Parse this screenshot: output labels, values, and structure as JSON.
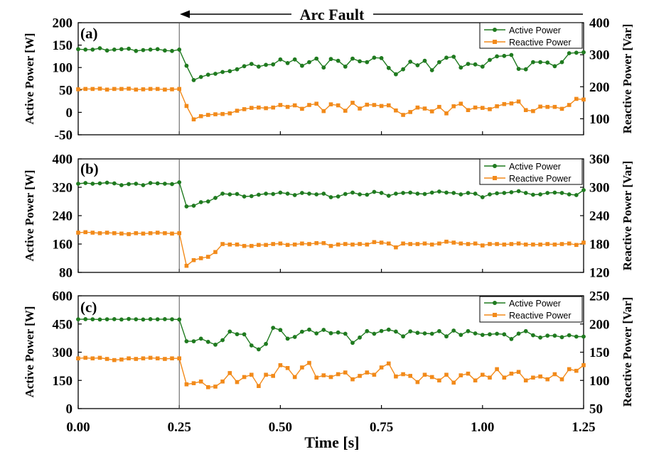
{
  "figure": {
    "annotation": "Arc Fault",
    "xlabel": "Time [s]",
    "x_ticks": [
      "0.00",
      "0.25",
      "0.50",
      "0.75",
      "1.00",
      "1.25"
    ],
    "x_range": [
      0,
      1.25
    ],
    "fault_time": 0.25,
    "colors": {
      "active": "#1f7a1f",
      "reactive": "#f28a1a",
      "axis": "#000000"
    }
  },
  "chart_data": [
    {
      "type": "line",
      "panel_label": "(a)",
      "ylabel_left": "Active Power [W]",
      "ylabel_right": "Reactive Power [Var]",
      "ylim_left": [
        -50,
        200
      ],
      "ylim_right": [
        50,
        400
      ],
      "yticks_left": [
        "-50",
        "0",
        "50",
        "100",
        "150",
        "200"
      ],
      "yticks_right": [
        "100",
        "200",
        "300",
        "400"
      ],
      "legend": [
        "Active Power",
        "Reactive Power"
      ],
      "legend_position": "top-right",
      "x": [
        0.0,
        0.0179,
        0.0357,
        0.0536,
        0.0714,
        0.0893,
        0.1071,
        0.125,
        0.1429,
        0.1607,
        0.1786,
        0.1964,
        0.2143,
        0.2321,
        0.25,
        0.2679,
        0.2857,
        0.3036,
        0.3214,
        0.3393,
        0.3571,
        0.375,
        0.3929,
        0.4107,
        0.4286,
        0.4464,
        0.4643,
        0.4821,
        0.5,
        0.5179,
        0.5357,
        0.5536,
        0.5714,
        0.5893,
        0.6071,
        0.625,
        0.6429,
        0.6607,
        0.6786,
        0.6964,
        0.7143,
        0.7321,
        0.75,
        0.7679,
        0.7857,
        0.8036,
        0.8214,
        0.8393,
        0.8571,
        0.875,
        0.8929,
        0.9107,
        0.9286,
        0.9464,
        0.9643,
        0.9821,
        1.0,
        1.0179,
        1.0357,
        1.0536,
        1.0714,
        1.0893,
        1.1071,
        1.125,
        1.1429,
        1.1607,
        1.1786,
        1.1964,
        1.2143,
        1.2321,
        1.25
      ],
      "series": [
        {
          "name": "Active Power",
          "axis": "left",
          "values": [
            141,
            140,
            140,
            143,
            138,
            140,
            141,
            142,
            137,
            139,
            140,
            141,
            138,
            137,
            140,
            104,
            72,
            79,
            84,
            86,
            90,
            92,
            96,
            103,
            108,
            102,
            106,
            107,
            118,
            110,
            118,
            104,
            112,
            120,
            100,
            119,
            115,
            102,
            120,
            114,
            112,
            122,
            121,
            99,
            85,
            96,
            113,
            105,
            115,
            94,
            112,
            122,
            124,
            100,
            108,
            107,
            102,
            117,
            125,
            126,
            128,
            97,
            96,
            112,
            112,
            111,
            103,
            112,
            132,
            133,
            134
          ]
        },
        {
          "name": "Reactive Power",
          "axis": "right",
          "values": [
            192,
            193,
            193,
            194,
            191,
            193,
            193,
            194,
            191,
            192,
            193,
            193,
            191,
            192,
            193,
            140,
            98,
            108,
            112,
            114,
            115,
            117,
            125,
            130,
            134,
            135,
            133,
            135,
            143,
            137,
            142,
            131,
            143,
            147,
            124,
            145,
            142,
            125,
            150,
            132,
            144,
            143,
            140,
            142,
            126,
            112,
            121,
            135,
            132,
            123,
            137,
            117,
            139,
            147,
            127,
            135,
            134,
            130,
            139,
            146,
            148,
            154,
            127,
            124,
            138,
            137,
            137,
            131,
            143,
            162,
            160
          ]
        }
      ]
    },
    {
      "type": "line",
      "panel_label": "(b)",
      "ylabel_left": "Active Power [W]",
      "ylabel_right": "Reactive Power [Var]",
      "ylim_left": [
        80,
        400
      ],
      "ylim_right": [
        120,
        360
      ],
      "yticks_left": [
        "80",
        "160",
        "240",
        "320",
        "400"
      ],
      "yticks_right": [
        "120",
        "180",
        "240",
        "300",
        "360"
      ],
      "legend": [
        "Active Power",
        "Reactive Power"
      ],
      "legend_position": "top-right",
      "x": [
        0.0,
        0.0179,
        0.0357,
        0.0536,
        0.0714,
        0.0893,
        0.1071,
        0.125,
        0.1429,
        0.1607,
        0.1786,
        0.1964,
        0.2143,
        0.2321,
        0.25,
        0.2679,
        0.2857,
        0.3036,
        0.3214,
        0.3393,
        0.3571,
        0.375,
        0.3929,
        0.4107,
        0.4286,
        0.4464,
        0.4643,
        0.4821,
        0.5,
        0.5179,
        0.5357,
        0.5536,
        0.5714,
        0.5893,
        0.6071,
        0.625,
        0.6429,
        0.6607,
        0.6786,
        0.6964,
        0.7143,
        0.7321,
        0.75,
        0.7679,
        0.7857,
        0.8036,
        0.8214,
        0.8393,
        0.8571,
        0.875,
        0.8929,
        0.9107,
        0.9286,
        0.9464,
        0.9643,
        0.9821,
        1.0,
        1.0179,
        1.0357,
        1.0536,
        1.0714,
        1.0893,
        1.1071,
        1.125,
        1.1429,
        1.1607,
        1.1786,
        1.1964,
        1.2143,
        1.2321,
        1.25
      ],
      "series": [
        {
          "name": "Active Power",
          "axis": "left",
          "values": [
            330,
            332,
            330,
            331,
            333,
            331,
            326,
            329,
            330,
            326,
            332,
            331,
            330,
            329,
            334,
            266,
            268,
            278,
            280,
            290,
            302,
            300,
            301,
            294,
            295,
            299,
            302,
            301,
            305,
            302,
            298,
            304,
            302,
            300,
            302,
            292,
            294,
            301,
            305,
            300,
            299,
            307,
            304,
            296,
            302,
            304,
            305,
            302,
            301,
            305,
            308,
            305,
            304,
            300,
            304,
            302,
            292,
            300,
            303,
            304,
            306,
            309,
            304,
            299,
            300,
            304,
            305,
            304,
            300,
            298,
            312
          ]
        },
        {
          "name": "Reactive Power",
          "axis": "right",
          "values": [
            204,
            205,
            204,
            203,
            204,
            203,
            202,
            201,
            203,
            202,
            203,
            204,
            203,
            202,
            203,
            134,
            146,
            150,
            153,
            163,
            180,
            179,
            179,
            176,
            176,
            178,
            178,
            180,
            181,
            178,
            179,
            181,
            180,
            182,
            182,
            176,
            179,
            180,
            179,
            180,
            179,
            184,
            183,
            181,
            173,
            181,
            180,
            180,
            181,
            179,
            181,
            185,
            183,
            181,
            180,
            181,
            177,
            180,
            180,
            179,
            180,
            181,
            179,
            179,
            179,
            180,
            179,
            180,
            181,
            178,
            183
          ]
        }
      ]
    },
    {
      "type": "line",
      "panel_label": "(c)",
      "ylabel_left": "Active Power [W]",
      "ylabel_right": "Reactive Power [Var]",
      "ylim_left": [
        0,
        600
      ],
      "ylim_right": [
        50,
        250
      ],
      "yticks_left": [
        "0",
        "150",
        "300",
        "450",
        "600"
      ],
      "yticks_right": [
        "50",
        "100",
        "150",
        "200",
        "250"
      ],
      "legend": [
        "Active Power",
        "Reactive Power"
      ],
      "legend_position": "top-right",
      "x": [
        0.0,
        0.0179,
        0.0357,
        0.0536,
        0.0714,
        0.0893,
        0.1071,
        0.125,
        0.1429,
        0.1607,
        0.1786,
        0.1964,
        0.2143,
        0.2321,
        0.25,
        0.2679,
        0.2857,
        0.3036,
        0.3214,
        0.3393,
        0.3571,
        0.375,
        0.3929,
        0.4107,
        0.4286,
        0.4464,
        0.4643,
        0.4821,
        0.5,
        0.5179,
        0.5357,
        0.5536,
        0.5714,
        0.5893,
        0.6071,
        0.625,
        0.6429,
        0.6607,
        0.6786,
        0.6964,
        0.7143,
        0.7321,
        0.75,
        0.7679,
        0.7857,
        0.8036,
        0.8214,
        0.8393,
        0.8571,
        0.875,
        0.8929,
        0.9107,
        0.9286,
        0.9464,
        0.9643,
        0.9821,
        1.0,
        1.0179,
        1.0357,
        1.0536,
        1.0714,
        1.0893,
        1.1071,
        1.125,
        1.1429,
        1.1607,
        1.1786,
        1.1964,
        1.2143,
        1.2321,
        1.25
      ],
      "series": [
        {
          "name": "Active Power",
          "axis": "left",
          "values": [
            475,
            476,
            475,
            474,
            475,
            476,
            474,
            477,
            475,
            474,
            476,
            475,
            476,
            475,
            474,
            358,
            358,
            372,
            355,
            340,
            364,
            410,
            396,
            395,
            336,
            315,
            344,
            430,
            418,
            372,
            381,
            409,
            420,
            400,
            419,
            401,
            405,
            398,
            350,
            378,
            412,
            398,
            413,
            420,
            410,
            384,
            411,
            403,
            400,
            398,
            412,
            384,
            415,
            392,
            412,
            400,
            392,
            395,
            398,
            395,
            370,
            399,
            412,
            390,
            378,
            388,
            388,
            380,
            390,
            383,
            383
          ]
        },
        {
          "name": "Reactive Power",
          "axis": "right",
          "values": [
            139,
            140,
            139,
            140,
            138,
            136,
            137,
            139,
            138,
            139,
            140,
            139,
            138,
            139,
            139,
            93,
            95,
            98,
            88,
            89,
            98,
            113,
            97,
            106,
            110,
            90,
            110,
            108,
            127,
            122,
            106,
            123,
            131,
            105,
            109,
            106,
            111,
            114,
            102,
            108,
            114,
            110,
            123,
            130,
            107,
            111,
            108,
            97,
            110,
            106,
            100,
            110,
            96,
            109,
            112,
            100,
            110,
            105,
            120,
            105,
            112,
            115,
            100,
            105,
            107,
            102,
            111,
            102,
            120,
            117,
            127
          ]
        }
      ]
    }
  ]
}
